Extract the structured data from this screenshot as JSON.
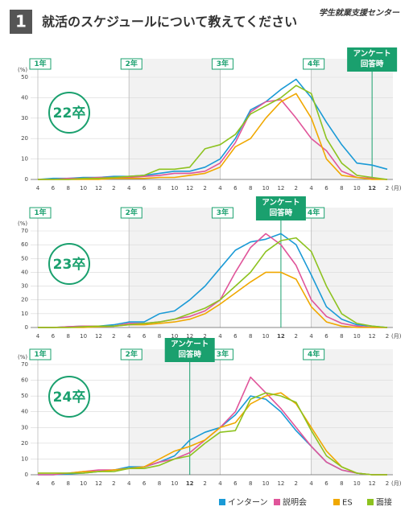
{
  "header": {
    "number": "1",
    "title": "就活のスケジュールについて教えてください",
    "logo": "学生就業支援センター"
  },
  "legend": [
    {
      "name": "インターン",
      "color": "#1a9ad6"
    },
    {
      "name": "説明会",
      "color": "#e0559a"
    },
    {
      "name": "ES",
      "color": "#f0a800"
    },
    {
      "name": "面接",
      "color": "#8dc21f"
    }
  ],
  "chart_data": [
    {
      "type": "line",
      "title": "22卒",
      "y_unit": "(%)",
      "x_unit": "(月)",
      "year_labels": [
        "1年",
        "2年",
        "3年",
        "4年"
      ],
      "annotation": {
        "lines": [
          "アンケート",
          "回答時"
        ],
        "category_index": 22
      },
      "categories": [
        "4",
        "6",
        "8",
        "10",
        "12",
        "2",
        "4",
        "6",
        "8",
        "10",
        "12",
        "2",
        "4",
        "6",
        "8",
        "10",
        "12",
        "2",
        "4",
        "6",
        "8",
        "10",
        "12",
        "2"
      ],
      "ylim": [
        0,
        50
      ],
      "yticks": [
        0,
        10,
        20,
        30,
        40,
        50
      ],
      "series": [
        {
          "values": [
            0,
            0.5,
            0.5,
            1,
            1,
            1.5,
            1.5,
            2,
            3,
            4,
            4,
            6,
            10,
            20,
            34,
            38,
            44,
            49,
            40,
            28,
            17,
            8,
            7,
            5
          ]
        },
        {
          "values": [
            0,
            0,
            0.5,
            0.5,
            1,
            1,
            1,
            1.5,
            2,
            3,
            3,
            4,
            8,
            18,
            33,
            38,
            39,
            30,
            20,
            14,
            4,
            1,
            0.5,
            0
          ]
        },
        {
          "values": [
            0,
            0,
            0,
            0,
            0,
            0.5,
            0.5,
            0.5,
            1,
            1,
            2,
            3,
            6,
            16,
            20,
            30,
            38,
            42,
            30,
            10,
            2,
            1,
            0,
            0
          ]
        },
        {
          "values": [
            0,
            0,
            0,
            0.5,
            0.5,
            1,
            1.5,
            2,
            5,
            5,
            6,
            15,
            17,
            22,
            32,
            36,
            40,
            46,
            42,
            20,
            8,
            2,
            1,
            0
          ]
        }
      ]
    },
    {
      "type": "line",
      "title": "23卒",
      "y_unit": "(%)",
      "x_unit": "(月)",
      "year_labels": [
        "1年",
        "2年",
        "3年",
        "4年"
      ],
      "annotation": {
        "lines": [
          "アンケート",
          "回答時"
        ],
        "category_index": 16
      },
      "categories": [
        "4",
        "6",
        "8",
        "10",
        "12",
        "2",
        "4",
        "6",
        "8",
        "10",
        "12",
        "2",
        "4",
        "6",
        "8",
        "10",
        "12",
        "2",
        "4",
        "6",
        "8",
        "10",
        "12",
        "2"
      ],
      "ylim": [
        0,
        70
      ],
      "yticks": [
        0,
        10,
        20,
        30,
        40,
        50,
        60,
        70
      ],
      "series": [
        {
          "values": [
            0,
            0,
            0.5,
            1,
            1,
            2,
            4,
            4,
            10,
            12,
            20,
            30,
            43,
            56,
            62,
            64,
            68,
            60,
            38,
            15,
            6,
            2,
            1,
            0
          ]
        },
        {
          "values": [
            0,
            0,
            0.5,
            1,
            1,
            1,
            3,
            3,
            4,
            6,
            8,
            12,
            20,
            40,
            58,
            68,
            60,
            45,
            20,
            8,
            3,
            1,
            0,
            0
          ]
        },
        {
          "values": [
            0,
            0,
            0,
            0,
            0.5,
            1,
            2,
            2,
            3,
            4,
            6,
            10,
            17,
            25,
            33,
            40,
            40,
            35,
            15,
            4,
            1,
            0,
            0,
            0
          ]
        },
        {
          "values": [
            0,
            0,
            0,
            0.5,
            1,
            1,
            2,
            3,
            4,
            6,
            10,
            14,
            20,
            30,
            40,
            55,
            63,
            65,
            55,
            30,
            10,
            3,
            1,
            0
          ]
        }
      ]
    },
    {
      "type": "line",
      "title": "24卒",
      "y_unit": "(%)",
      "x_unit": "(月)",
      "year_labels": [
        "1年",
        "2年",
        "3年",
        "4年"
      ],
      "annotation": {
        "lines": [
          "アンケート",
          "回答時"
        ],
        "category_index": 10
      },
      "categories": [
        "4",
        "6",
        "8",
        "10",
        "12",
        "2",
        "4",
        "6",
        "8",
        "10",
        "12",
        "2",
        "4",
        "6",
        "8",
        "10",
        "12",
        "2",
        "4",
        "6",
        "8",
        "10",
        "12",
        "2"
      ],
      "ylim": [
        0,
        70
      ],
      "yticks": [
        0,
        10,
        20,
        30,
        40,
        50,
        60,
        70
      ],
      "series": [
        {
          "values": [
            0,
            0,
            0.5,
            1,
            2,
            3,
            5,
            5,
            8,
            12,
            22,
            27,
            30,
            38,
            50,
            48,
            40,
            28,
            18,
            8,
            3,
            1,
            0,
            0
          ]
        },
        {
          "values": [
            0,
            0,
            1,
            2,
            3,
            3,
            4,
            5,
            8,
            10,
            14,
            22,
            30,
            40,
            62,
            52,
            42,
            30,
            18,
            8,
            3,
            1,
            0,
            0
          ]
        },
        {
          "values": [
            1,
            1,
            1,
            2,
            2,
            3,
            4,
            5,
            10,
            15,
            18,
            22,
            30,
            33,
            45,
            50,
            52,
            45,
            30,
            15,
            5,
            1,
            0,
            0
          ]
        },
        {
          "values": [
            1,
            1,
            1,
            1,
            2,
            2,
            4,
            4,
            6,
            10,
            12,
            20,
            27,
            28,
            48,
            52,
            50,
            46,
            28,
            12,
            5,
            1,
            0,
            0
          ]
        }
      ]
    }
  ]
}
